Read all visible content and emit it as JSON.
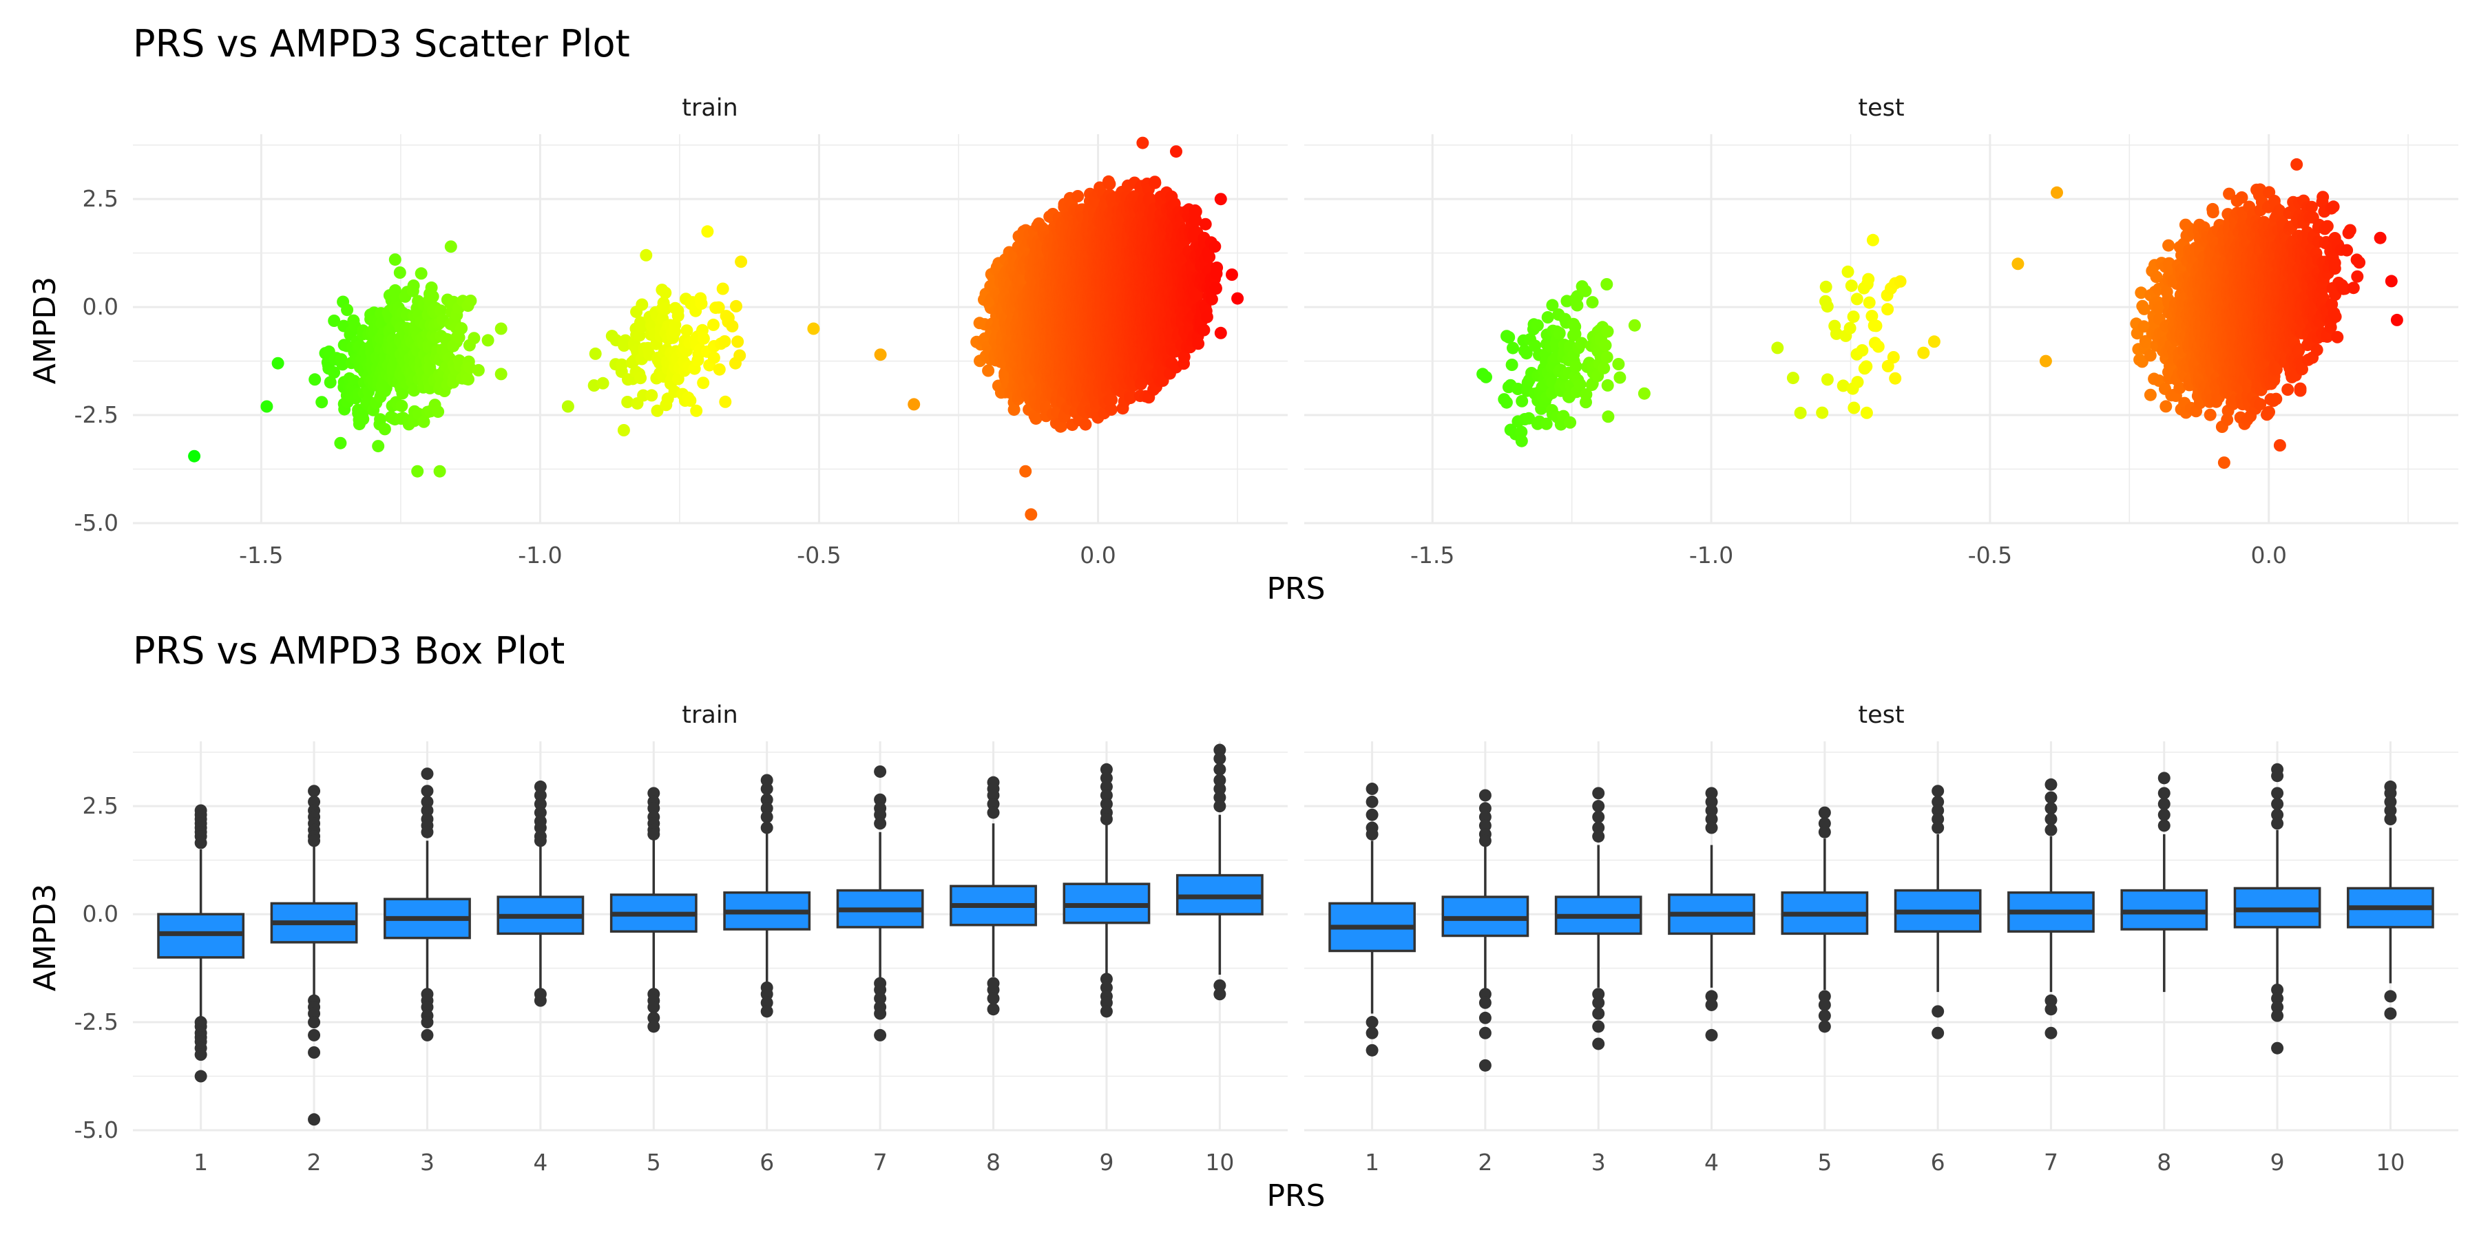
{
  "chart_data": [
    {
      "type": "scatter",
      "title": "PRS vs AMPD3 Scatter Plot",
      "xlabel": "PRS",
      "ylabel": "AMPD3",
      "xlim": [
        -1.73,
        0.34
      ],
      "ylim": [
        -5.0,
        4.0
      ],
      "x_ticks": [
        -1.5,
        -1.0,
        -0.5,
        0.0
      ],
      "x_tick_labels": [
        "-1.5",
        "-1.0",
        "-0.5",
        "0.0"
      ],
      "y_ticks": [
        -5.0,
        -2.5,
        0.0,
        2.5
      ],
      "y_tick_labels": [
        "-5.0",
        "-2.5",
        "0.0",
        "2.5"
      ],
      "grid": true,
      "color_scale": {
        "low": "#00ff00",
        "high": "#ff0000",
        "range": [
          -1.65,
          0.25
        ]
      },
      "panels": [
        {
          "name": "train",
          "clusters": [
            {
              "x_mean": -1.25,
              "x_sd": 0.06,
              "y_mean": -1.2,
              "y_sd": 0.75,
              "n": 450
            },
            {
              "x_mean": -0.77,
              "x_sd": 0.06,
              "y_mean": -0.9,
              "y_sd": 0.7,
              "n": 160
            },
            {
              "x_mean": 0.0,
              "x_sd": 0.075,
              "y_mean": 0.1,
              "y_sd": 0.95,
              "n": 9000
            }
          ],
          "points": [
            {
              "x": -1.62,
              "y": -3.45
            },
            {
              "x": -1.22,
              "y": -3.8
            },
            {
              "x": -1.18,
              "y": -3.8
            },
            {
              "x": -1.26,
              "y": 1.1
            },
            {
              "x": -1.16,
              "y": 1.4
            },
            {
              "x": -1.07,
              "y": -1.55
            },
            {
              "x": -1.07,
              "y": -0.5
            },
            {
              "x": -1.47,
              "y": -1.3
            },
            {
              "x": -1.49,
              "y": -2.3
            },
            {
              "x": -0.95,
              "y": -2.3
            },
            {
              "x": -0.85,
              "y": -2.85
            },
            {
              "x": -0.79,
              "y": -2.4
            },
            {
              "x": -0.72,
              "y": -2.4
            },
            {
              "x": -0.65,
              "y": -1.3
            },
            {
              "x": -0.64,
              "y": 1.05
            },
            {
              "x": -0.81,
              "y": 1.2
            },
            {
              "x": -0.7,
              "y": 1.75
            },
            {
              "x": -0.51,
              "y": -0.5
            },
            {
              "x": -0.39,
              "y": -1.1
            },
            {
              "x": -0.33,
              "y": -2.25
            },
            {
              "x": -0.13,
              "y": -3.8
            },
            {
              "x": -0.12,
              "y": -4.8
            },
            {
              "x": 0.08,
              "y": 3.8
            },
            {
              "x": 0.14,
              "y": 3.6
            },
            {
              "x": 0.22,
              "y": 2.5
            },
            {
              "x": 0.25,
              "y": 0.2
            },
            {
              "x": 0.24,
              "y": 0.75
            },
            {
              "x": 0.22,
              "y": -0.6
            },
            {
              "x": 0.19,
              "y": 1.6
            }
          ]
        },
        {
          "name": "test",
          "clusters": [
            {
              "x_mean": -1.27,
              "x_sd": 0.05,
              "y_mean": -1.4,
              "y_sd": 0.7,
              "n": 160
            },
            {
              "x_mean": -0.75,
              "x_sd": 0.05,
              "y_mean": -0.8,
              "y_sd": 0.75,
              "n": 40
            },
            {
              "x_mean": -0.04,
              "x_sd": 0.07,
              "y_mean": 0.05,
              "y_sd": 0.95,
              "n": 3000
            }
          ],
          "points": [
            {
              "x": -1.41,
              "y": -1.55
            },
            {
              "x": -1.34,
              "y": -3.1
            },
            {
              "x": -1.12,
              "y": -2.0
            },
            {
              "x": -1.24,
              "y": 0.25
            },
            {
              "x": -0.71,
              "y": 1.55
            },
            {
              "x": -0.67,
              "y": 0.55
            },
            {
              "x": -0.6,
              "y": -0.8
            },
            {
              "x": -0.84,
              "y": -2.45
            },
            {
              "x": -0.67,
              "y": -1.65
            },
            {
              "x": -0.45,
              "y": 1.0
            },
            {
              "x": -0.38,
              "y": 2.65
            },
            {
              "x": -0.4,
              "y": -1.25
            },
            {
              "x": 0.05,
              "y": 3.3
            },
            {
              "x": 0.23,
              "y": -0.3
            },
            {
              "x": 0.22,
              "y": 0.6
            },
            {
              "x": 0.02,
              "y": -3.2
            },
            {
              "x": -0.08,
              "y": -3.6
            },
            {
              "x": 0.2,
              "y": 1.6
            }
          ]
        }
      ]
    },
    {
      "type": "box",
      "title": "PRS vs AMPD3 Box Plot",
      "xlabel": "PRS",
      "ylabel": "AMPD3",
      "categories": [
        "1",
        "2",
        "3",
        "4",
        "5",
        "6",
        "7",
        "8",
        "9",
        "10"
      ],
      "ylim": [
        -5.0,
        4.0
      ],
      "y_ticks": [
        -5.0,
        -2.5,
        0.0,
        2.5
      ],
      "y_tick_labels": [
        "-5.0",
        "-2.5",
        "0.0",
        "2.5"
      ],
      "box_color": "#1E90FF",
      "grid": true,
      "panels": [
        {
          "name": "train",
          "boxes": [
            {
              "lowerWhisker": -2.4,
              "q1": -1.0,
              "median": -0.45,
              "q3": 0.0,
              "upperWhisker": 1.5,
              "outliers": [
                2.4,
                2.3,
                2.2,
                2.1,
                2.0,
                1.9,
                1.8,
                1.65,
                -2.5,
                -2.6,
                -2.75,
                -2.85,
                -2.95,
                -3.1,
                -3.25,
                -3.75
              ]
            },
            {
              "lowerWhisker": -1.9,
              "q1": -0.65,
              "median": -0.2,
              "q3": 0.25,
              "upperWhisker": 1.6,
              "outliers": [
                2.85,
                2.6,
                2.4,
                2.25,
                2.1,
                1.95,
                1.8,
                1.7,
                -2.0,
                -2.15,
                -2.3,
                -2.5,
                -2.8,
                -3.2,
                -4.75
              ]
            },
            {
              "lowerWhisker": -1.8,
              "q1": -0.55,
              "median": -0.1,
              "q3": 0.35,
              "upperWhisker": 1.7,
              "outliers": [
                3.25,
                2.85,
                2.6,
                2.4,
                2.2,
                2.05,
                1.9,
                -1.85,
                -2.0,
                -2.15,
                -2.35,
                -2.5,
                -2.8
              ]
            },
            {
              "lowerWhisker": -1.75,
              "q1": -0.45,
              "median": -0.05,
              "q3": 0.4,
              "upperWhisker": 1.6,
              "outliers": [
                2.95,
                2.75,
                2.55,
                2.35,
                2.15,
                2.0,
                1.8,
                1.7,
                -1.85,
                -2.0
              ]
            },
            {
              "lowerWhisker": -1.75,
              "q1": -0.4,
              "median": 0.0,
              "q3": 0.45,
              "upperWhisker": 1.75,
              "outliers": [
                2.8,
                2.6,
                2.45,
                2.25,
                2.1,
                1.95,
                1.85,
                -1.85,
                -2.0,
                -2.15,
                -2.4,
                -2.6
              ]
            },
            {
              "lowerWhisker": -1.6,
              "q1": -0.35,
              "median": 0.05,
              "q3": 0.5,
              "upperWhisker": 1.9,
              "outliers": [
                3.1,
                2.9,
                2.65,
                2.45,
                2.25,
                2.0,
                -1.7,
                -1.85,
                -2.05,
                -2.25
              ]
            },
            {
              "lowerWhisker": -1.5,
              "q1": -0.3,
              "median": 0.1,
              "q3": 0.55,
              "upperWhisker": 1.9,
              "outliers": [
                3.3,
                2.65,
                2.45,
                2.3,
                2.1,
                -1.6,
                -1.75,
                -1.95,
                -2.15,
                -2.3,
                -2.8
              ]
            },
            {
              "lowerWhisker": -1.45,
              "q1": -0.25,
              "median": 0.2,
              "q3": 0.65,
              "upperWhisker": 2.1,
              "outliers": [
                3.05,
                2.9,
                2.75,
                2.55,
                2.35,
                -1.6,
                -1.75,
                -1.95,
                -2.2
              ]
            },
            {
              "lowerWhisker": -1.4,
              "q1": -0.2,
              "median": 0.2,
              "q3": 0.7,
              "upperWhisker": 2.1,
              "outliers": [
                3.35,
                3.15,
                2.95,
                2.75,
                2.55,
                2.35,
                2.2,
                -1.5,
                -1.7,
                -1.9,
                -2.05,
                -2.25
              ]
            },
            {
              "lowerWhisker": -1.4,
              "q1": 0.0,
              "median": 0.4,
              "q3": 0.9,
              "upperWhisker": 2.3,
              "outliers": [
                3.8,
                3.6,
                3.35,
                3.1,
                2.9,
                2.7,
                2.5,
                -1.65,
                -1.85
              ]
            }
          ]
        },
        {
          "name": "test",
          "boxes": [
            {
              "lowerWhisker": -2.3,
              "q1": -0.85,
              "median": -0.3,
              "q3": 0.25,
              "upperWhisker": 1.7,
              "outliers": [
                2.9,
                2.6,
                2.3,
                2.0,
                1.85,
                -2.5,
                -2.75,
                -3.15
              ]
            },
            {
              "lowerWhisker": -1.75,
              "q1": -0.5,
              "median": -0.1,
              "q3": 0.4,
              "upperWhisker": 1.6,
              "outliers": [
                2.75,
                2.45,
                2.25,
                2.05,
                1.85,
                1.7,
                -1.85,
                -2.05,
                -2.4,
                -2.75,
                -3.5
              ]
            },
            {
              "lowerWhisker": -1.7,
              "q1": -0.45,
              "median": -0.05,
              "q3": 0.4,
              "upperWhisker": 1.6,
              "outliers": [
                2.8,
                2.5,
                2.25,
                2.0,
                1.8,
                -1.85,
                -2.05,
                -2.3,
                -2.6,
                -3.0
              ]
            },
            {
              "lowerWhisker": -1.7,
              "q1": -0.45,
              "median": 0.0,
              "q3": 0.45,
              "upperWhisker": 1.6,
              "outliers": [
                2.8,
                2.6,
                2.4,
                2.2,
                2.0,
                -1.9,
                -2.1,
                -2.8
              ]
            },
            {
              "lowerWhisker": -1.75,
              "q1": -0.45,
              "median": 0.0,
              "q3": 0.5,
              "upperWhisker": 1.75,
              "outliers": [
                2.35,
                2.1,
                1.9,
                -1.9,
                -2.1,
                -2.35,
                -2.6
              ]
            },
            {
              "lowerWhisker": -1.8,
              "q1": -0.4,
              "median": 0.05,
              "q3": 0.55,
              "upperWhisker": 1.85,
              "outliers": [
                2.85,
                2.6,
                2.4,
                2.2,
                2.0,
                -2.25,
                -2.75
              ]
            },
            {
              "lowerWhisker": -1.8,
              "q1": -0.4,
              "median": 0.05,
              "q3": 0.5,
              "upperWhisker": 1.8,
              "outliers": [
                3.0,
                2.7,
                2.45,
                2.2,
                1.95,
                -2.0,
                -2.2,
                -2.75
              ]
            },
            {
              "lowerWhisker": -1.8,
              "q1": -0.35,
              "median": 0.05,
              "q3": 0.55,
              "upperWhisker": 1.85,
              "outliers": [
                3.15,
                2.8,
                2.55,
                2.3,
                2.05
              ]
            },
            {
              "lowerWhisker": -1.65,
              "q1": -0.3,
              "median": 0.1,
              "q3": 0.6,
              "upperWhisker": 1.95,
              "outliers": [
                3.35,
                3.2,
                2.8,
                2.55,
                2.3,
                2.1,
                -1.75,
                -1.95,
                -2.15,
                -2.35,
                -3.1
              ]
            },
            {
              "lowerWhisker": -1.6,
              "q1": -0.3,
              "median": 0.15,
              "q3": 0.6,
              "upperWhisker": 2.0,
              "outliers": [
                2.95,
                2.8,
                2.6,
                2.4,
                2.2,
                -1.9,
                -2.3
              ]
            }
          ]
        }
      ]
    }
  ]
}
